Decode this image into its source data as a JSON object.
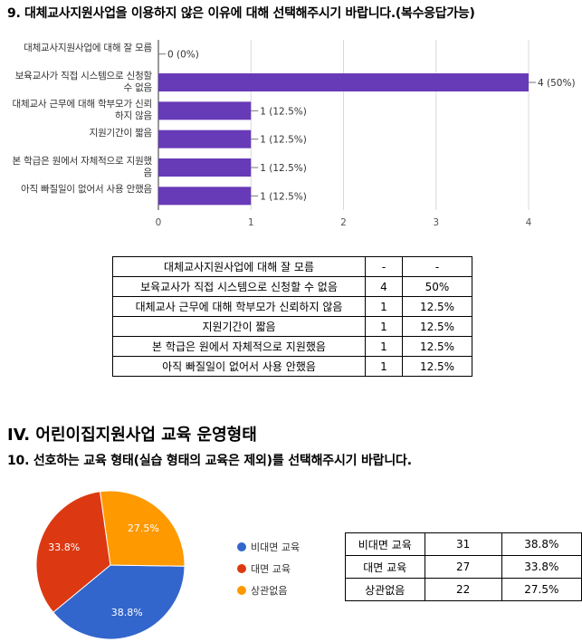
{
  "q9": {
    "title": "9. 대체교사지원사업을 이용하지 않은 이유에 대해 선택해주시기 바랍니다.(복수응답가능)"
  },
  "chart_data": [
    {
      "type": "bar",
      "orientation": "horizontal",
      "categories": [
        "대체교사지원사업에 대해 잘 모름",
        "보육교사가 직접 시스템으로 신청할 수 없음",
        "대체교사 근무에 대해 학부모가 신뢰하지 않음",
        "지원기간이 짧음",
        "본 학급은 원에서 자체적으로 지원했음",
        "아직 빠질일이 없어서 사용 안했음"
      ],
      "values": [
        0,
        4,
        1,
        1,
        1,
        1
      ],
      "data_labels": [
        "0 (0%)",
        "4 (50%)",
        "1 (12.5%)",
        "1 (12.5%)",
        "1 (12.5%)",
        "1 (12.5%)"
      ],
      "xlim": [
        0,
        4
      ],
      "xticks": [
        "0",
        "1",
        "2",
        "3",
        "4"
      ],
      "grid": true,
      "bar_color": "#673ab7"
    },
    {
      "type": "pie",
      "labels": [
        "비대면 교육",
        "대면 교육",
        "상관없음"
      ],
      "values": [
        38.8,
        33.8,
        27.5
      ],
      "data_labels": [
        "38.8%",
        "33.8%",
        "27.5%"
      ],
      "colors": [
        "#3366cc",
        "#dc3912",
        "#ff9900"
      ],
      "legend_position": "right"
    }
  ],
  "table1": {
    "rows": [
      [
        "대체교사지원사업에 대해 잘 모름",
        "-",
        "-"
      ],
      [
        "보육교사가 직접 시스템으로 신청할 수 없음",
        "4",
        "50%"
      ],
      [
        "대체교사 근무에 대해 학부모가 신뢰하지 않음",
        "1",
        "12.5%"
      ],
      [
        "지원기간이 짧음",
        "1",
        "12.5%"
      ],
      [
        "본 학급은 원에서 자체적으로 지원했음",
        "1",
        "12.5%"
      ],
      [
        "아직 빠질일이 없어서 사용 안했음",
        "1",
        "12.5%"
      ]
    ]
  },
  "section": {
    "title": "IV. 어린이집지원사업 교육 운영형태"
  },
  "q10": {
    "title": "10. 선호하는 교육 형태(실습 형태의 교육은 제외)를 선택해주시기 바랍니다."
  },
  "table2": {
    "rows": [
      [
        "비대면 교육",
        "31",
        "38.8%"
      ],
      [
        "대면 교육",
        "27",
        "33.8%"
      ],
      [
        "상관없음",
        "22",
        "27.5%"
      ]
    ]
  }
}
